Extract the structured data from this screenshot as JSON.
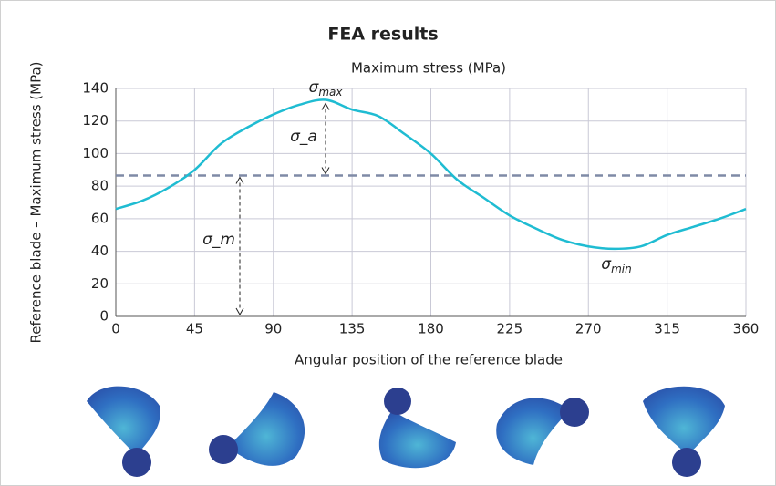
{
  "chart_data": {
    "type": "line",
    "title": "FEA results",
    "subtitle": "Maximum stress (MPa)",
    "x_label": "Angular position of the reference blade",
    "y_label": "Reference blade – Maximum stress (MPa)",
    "x": [
      0,
      15,
      30,
      45,
      60,
      75,
      90,
      105,
      120,
      135,
      150,
      165,
      180,
      195,
      210,
      225,
      240,
      255,
      270,
      285,
      300,
      315,
      330,
      345,
      360
    ],
    "series": [
      {
        "name": "Maximum stress (MPa)",
        "color": "#1fbcd2",
        "values": [
          66,
          71,
          79,
          90,
          106,
          116,
          124,
          130,
          133,
          127,
          123,
          112,
          100,
          84,
          73,
          62,
          54,
          47,
          43,
          41.5,
          43,
          50,
          55,
          60,
          66
        ]
      }
    ],
    "mean": 86.5,
    "mean_color": "#7f8aa6",
    "xlim": [
      0,
      360
    ],
    "xticks": [
      0,
      45,
      90,
      135,
      180,
      225,
      270,
      315,
      360
    ],
    "ylim": [
      0,
      140
    ],
    "yticks": [
      0,
      20,
      40,
      60,
      80,
      100,
      120,
      140
    ],
    "grid": true,
    "annotations": [
      {
        "symbol": "σ",
        "subscript": "max"
      },
      {
        "symbol": "σ_a"
      },
      {
        "symbol": "σ_m"
      },
      {
        "symbol": "σ",
        "subscript": "min"
      }
    ]
  }
}
